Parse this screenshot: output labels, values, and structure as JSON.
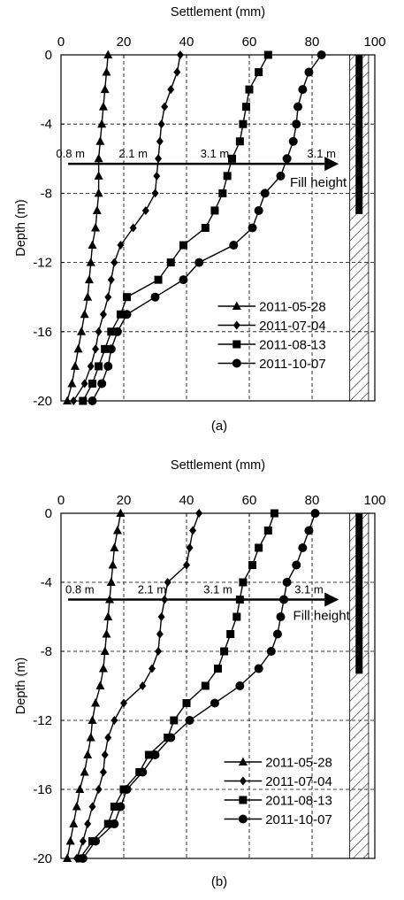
{
  "chart_data": [
    {
      "type": "line",
      "panel_label": "(a)",
      "xlabel": "Settlement  (mm)",
      "ylabel": "Depth (m)",
      "x_ticks": [
        "0",
        "20",
        "40",
        "60",
        "80",
        "100"
      ],
      "y_ticks": [
        "0",
        "-4",
        "-8",
        "-12",
        "-16",
        "-20"
      ],
      "xlim": [
        0,
        100
      ],
      "ylim": [
        -20,
        0
      ],
      "x_axis_position": "top",
      "grid": "dashed",
      "legend_position": "bottom-right",
      "annotations": {
        "fill_labels": [
          "0.8 m",
          "2.1 m",
          "3.1 m",
          "3.1 m"
        ],
        "fill_height_label": "Fill height",
        "arrow_depth": -6.3,
        "fill_label_values": [
          3,
          23,
          49,
          83
        ],
        "hatch_x_range": [
          92,
          98
        ],
        "bar_x": 95,
        "bar_depth": -9.2
      },
      "series": [
        {
          "name": "2011-05-28",
          "marker": "triangle",
          "x": [
            15,
            14.5,
            14,
            13.5,
            13,
            12.5,
            12,
            12,
            12,
            11.5,
            11,
            10,
            9.5,
            9,
            8.5,
            7.5,
            6.5,
            5.5,
            4.5,
            3.5,
            2
          ],
          "y": [
            0,
            -1,
            -2,
            -3,
            -4,
            -5,
            -6,
            -7,
            -8,
            -9,
            -10,
            -11,
            -12,
            -13,
            -14,
            -15,
            -16,
            -17,
            -18,
            -19,
            -20
          ]
        },
        {
          "name": "2011-07-04",
          "marker": "diamond",
          "x": [
            38,
            37,
            35,
            33,
            32,
            31.5,
            31,
            30.5,
            30,
            27,
            23,
            19,
            17,
            16,
            15,
            13.5,
            12,
            11,
            9.5,
            7.5,
            4
          ],
          "y": [
            0,
            -1,
            -2,
            -3,
            -4,
            -5,
            -6,
            -7,
            -8,
            -9,
            -10,
            -11,
            -12,
            -13,
            -14,
            -15,
            -16,
            -17,
            -18,
            -19,
            -20
          ]
        },
        {
          "name": "2011-08-13",
          "marker": "square",
          "x": [
            66,
            63,
            60,
            59,
            58,
            57,
            54.5,
            53,
            51.5,
            49,
            46,
            39,
            35,
            31,
            21,
            19,
            16,
            14,
            12,
            10,
            7
          ],
          "y": [
            0,
            -1,
            -2,
            -3,
            -4,
            -5,
            -6,
            -7,
            -8,
            -9,
            -10,
            -11,
            -12,
            -13,
            -14,
            -15,
            -16,
            -17,
            -18,
            -19,
            -20
          ]
        },
        {
          "name": "2011-10-07",
          "marker": "circle",
          "x": [
            83,
            79,
            77,
            75.5,
            75,
            74,
            72,
            70,
            65,
            63,
            61,
            55,
            44,
            39,
            30,
            21,
            18,
            16,
            15,
            13,
            10
          ],
          "y": [
            0,
            -1,
            -2,
            -3,
            -4,
            -5,
            -6,
            -7,
            -8,
            -9,
            -10,
            -11,
            -12,
            -13,
            -14,
            -15,
            -16,
            -17,
            -18,
            -19,
            -20
          ]
        }
      ]
    },
    {
      "type": "line",
      "panel_label": "(b)",
      "xlabel": "Settlement (mm)",
      "ylabel": "Depth (m)",
      "x_ticks": [
        "0",
        "20",
        "40",
        "60",
        "80",
        "100"
      ],
      "y_ticks": [
        "0",
        "-4",
        "-8",
        "-12",
        "-16",
        "-20"
      ],
      "xlim": [
        0,
        100
      ],
      "ylim": [
        -20,
        0
      ],
      "x_axis_position": "top",
      "grid": "dashed",
      "legend_position": "bottom-right",
      "annotations": {
        "fill_labels": [
          "0.8 m",
          "2.1 m",
          "3.1 m",
          "3.1 m"
        ],
        "fill_height_label": "Fill height",
        "arrow_depth": -5,
        "fill_label_values": [
          6,
          29,
          50,
          79
        ],
        "hatch_x_range": [
          92,
          98
        ],
        "bar_x": 95,
        "bar_depth": -9.3
      },
      "series": [
        {
          "name": "2011-05-28",
          "marker": "triangle",
          "x": [
            19,
            18,
            17,
            16.5,
            16,
            15.5,
            15,
            14.5,
            14,
            13.5,
            12.5,
            11,
            10,
            9.5,
            8.5,
            7.5,
            6,
            5,
            4,
            3,
            2
          ],
          "y": [
            0,
            -1,
            -2,
            -3,
            -4,
            -5,
            -6,
            -7,
            -8,
            -9,
            -10,
            -11,
            -12,
            -13,
            -14,
            -15,
            -16,
            -17,
            -18,
            -19,
            -20
          ]
        },
        {
          "name": "2011-07-04",
          "marker": "diamond",
          "x": [
            44,
            42,
            41,
            40,
            34,
            33,
            32,
            31.5,
            31,
            29,
            26,
            20,
            17,
            15,
            14,
            13.5,
            12,
            10,
            8.5,
            7,
            5
          ],
          "y": [
            0,
            -1,
            -2,
            -3,
            -4,
            -5,
            -6,
            -7,
            -8,
            -9,
            -10,
            -11,
            -12,
            -13,
            -14,
            -15,
            -16,
            -17,
            -18,
            -19,
            -20
          ]
        },
        {
          "name": "2011-08-13",
          "marker": "square",
          "x": [
            68,
            66,
            63,
            61,
            58,
            57,
            56,
            54,
            52,
            50,
            46,
            40,
            36,
            34,
            28,
            25,
            20,
            17,
            15,
            10,
            6
          ],
          "y": [
            0,
            -1,
            -2,
            -3,
            -4,
            -5,
            -6,
            -7,
            -8,
            -9,
            -10,
            -11,
            -12,
            -13,
            -14,
            -15,
            -16,
            -17,
            -18,
            -19,
            -20
          ]
        },
        {
          "name": "2011-10-07",
          "marker": "circle",
          "x": [
            81,
            79,
            77,
            75,
            72,
            71,
            70,
            69,
            67,
            63,
            57,
            49,
            41,
            35,
            30,
            26,
            21,
            19,
            17,
            11,
            7
          ],
          "y": [
            0,
            -1,
            -2,
            -3,
            -4,
            -5,
            -6,
            -7,
            -8,
            -9,
            -10,
            -11,
            -12,
            -13,
            -14,
            -15,
            -16,
            -17,
            -18,
            -19,
            -20
          ]
        }
      ]
    }
  ]
}
